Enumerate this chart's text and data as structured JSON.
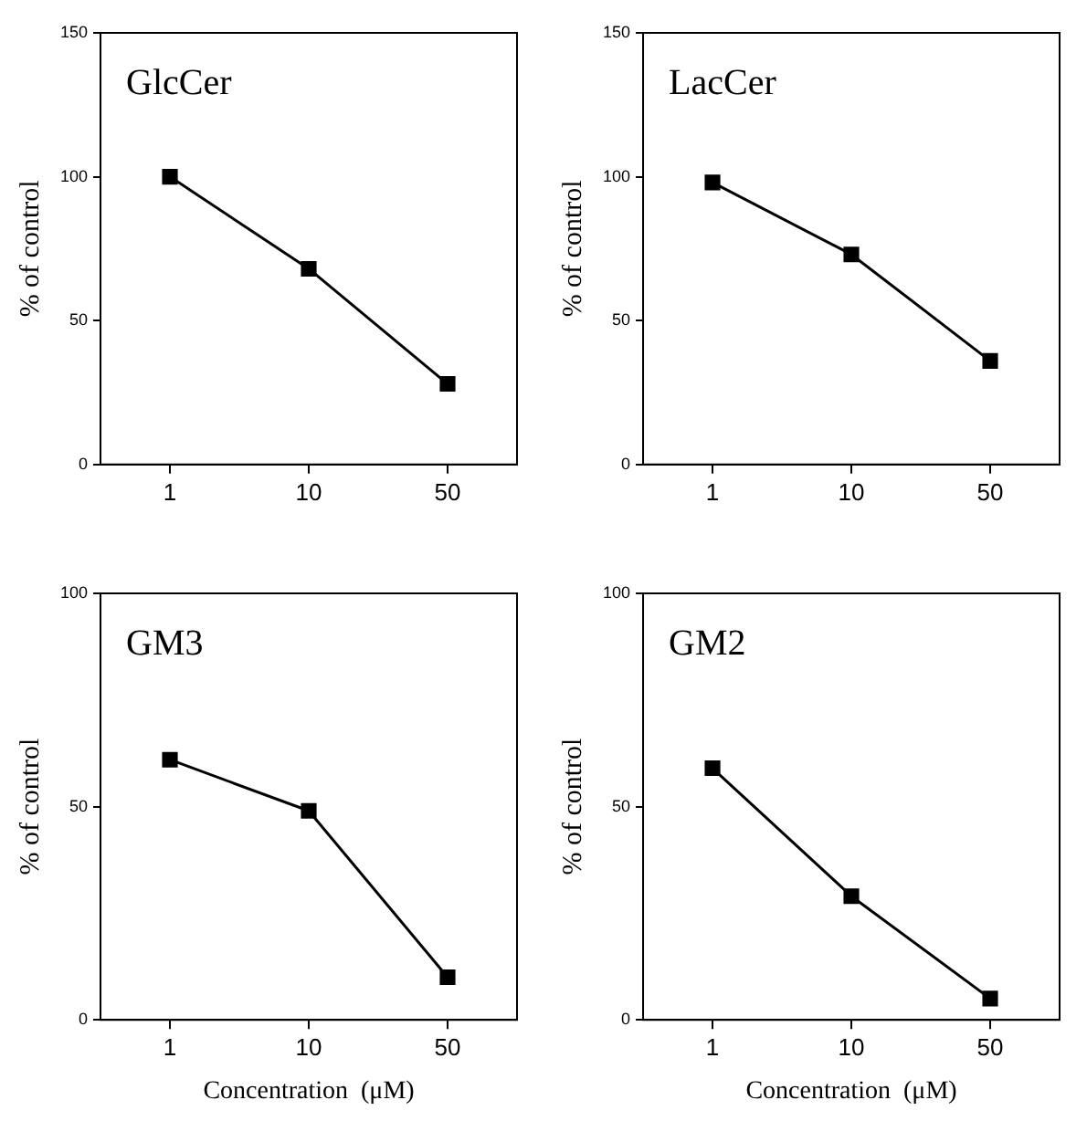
{
  "chart_data": [
    {
      "type": "line",
      "title": "GlcCer",
      "ylabel": "% of control",
      "categories": [
        "1",
        "10",
        "50"
      ],
      "ylim": [
        0,
        150
      ],
      "yticks": [
        0,
        50,
        100,
        150
      ],
      "grid": false,
      "legend": false,
      "marker": "square",
      "line_style": "solid",
      "series": [
        {
          "color": "#000000",
          "values": [
            100,
            68,
            28
          ]
        }
      ]
    },
    {
      "type": "line",
      "title": "LacCer",
      "ylabel": "% of control",
      "categories": [
        "1",
        "10",
        "50"
      ],
      "ylim": [
        0,
        150
      ],
      "yticks": [
        0,
        50,
        100,
        150
      ],
      "grid": false,
      "legend": false,
      "marker": "square",
      "line_style": "solid",
      "series": [
        {
          "color": "#000000",
          "values": [
            98,
            73,
            36
          ]
        }
      ]
    },
    {
      "type": "line",
      "title": "GM3",
      "ylabel": "% of control",
      "xlabel": "Concentration  (μM)",
      "categories": [
        "1",
        "10",
        "50"
      ],
      "ylim": [
        0,
        100
      ],
      "yticks": [
        0,
        50,
        100
      ],
      "grid": false,
      "legend": false,
      "marker": "square",
      "line_style": "solid",
      "series": [
        {
          "color": "#000000",
          "values": [
            61,
            49,
            10
          ]
        }
      ]
    },
    {
      "type": "line",
      "title": "GM2",
      "ylabel": "% of control",
      "xlabel": "Concentration  (μM)",
      "categories": [
        "1",
        "10",
        "50"
      ],
      "ylim": [
        0,
        100
      ],
      "yticks": [
        0,
        50,
        100
      ],
      "grid": false,
      "legend": false,
      "marker": "square",
      "line_style": "solid",
      "series": [
        {
          "color": "#000000",
          "values": [
            59,
            29,
            5
          ]
        }
      ]
    }
  ]
}
